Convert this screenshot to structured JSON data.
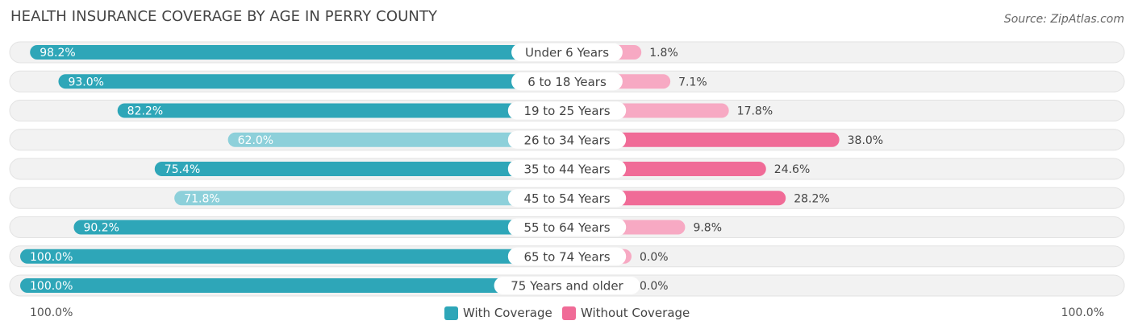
{
  "chart_data": {
    "type": "bar",
    "orientation": "horizontal-diverging",
    "title": "HEALTH INSURANCE COVERAGE BY AGE IN PERRY COUNTY",
    "source": "Source: ZipAtlas.com",
    "categories": [
      "Under 6 Years",
      "6 to 18 Years",
      "19 to 25 Years",
      "26 to 34 Years",
      "35 to 44 Years",
      "45 to 54 Years",
      "55 to 64 Years",
      "65 to 74 Years",
      "75 Years and older"
    ],
    "series": [
      {
        "name": "With Coverage",
        "values": [
          98.2,
          93.0,
          82.2,
          62.0,
          75.4,
          71.8,
          90.2,
          100.0,
          100.0
        ],
        "labels": [
          "98.2%",
          "93.0%",
          "82.2%",
          "62.0%",
          "75.4%",
          "71.8%",
          "90.2%",
          "100.0%",
          "100.0%"
        ]
      },
      {
        "name": "Without Coverage",
        "values": [
          1.8,
          7.1,
          17.8,
          38.0,
          24.6,
          28.2,
          9.8,
          0.0,
          0.0
        ],
        "labels": [
          "1.8%",
          "7.1%",
          "17.8%",
          "38.0%",
          "24.6%",
          "28.2%",
          "9.8%",
          "0.0%",
          "0.0%"
        ]
      }
    ],
    "axis_left_label": "100.0%",
    "axis_right_label": "100.0%",
    "xlim": [
      0,
      100
    ],
    "colors": {
      "with_strong": "#2ea6b8",
      "with_light": "#8dd0da",
      "without_strong": "#f06b97",
      "without_light": "#f7a9c3",
      "row_bg": "#f2f2f2",
      "row_border": "#e2e2e2"
    }
  }
}
